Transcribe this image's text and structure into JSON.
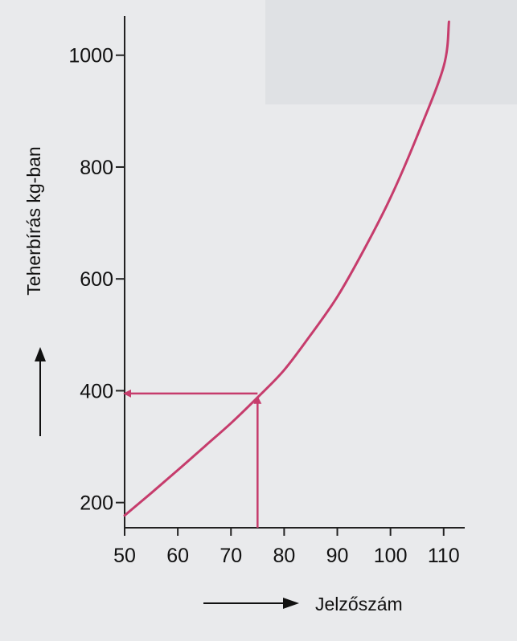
{
  "chart_data": {
    "type": "line",
    "title": "",
    "xlabel": "Jelzőszám",
    "ylabel": "Teherbírás kg-ban",
    "xlim": [
      50,
      112
    ],
    "ylim": [
      155,
      1070
    ],
    "x_ticks": [
      50,
      60,
      70,
      80,
      90,
      100,
      110
    ],
    "y_ticks": [
      200,
      400,
      600,
      800,
      1000
    ],
    "grid": false,
    "legend": "none",
    "series": [
      {
        "x": [
          50,
          55,
          60,
          65,
          70,
          75,
          80,
          85,
          90,
          95,
          100,
          105,
          110,
          111
        ],
        "y": [
          177,
          217,
          258,
          300,
          342,
          388,
          437,
          500,
          568,
          652,
          745,
          855,
          980,
          1060
        ]
      }
    ],
    "annotations": [
      {
        "type": "arrow",
        "from": [
          75,
          155
        ],
        "to": [
          75,
          388
        ],
        "label": ""
      },
      {
        "type": "arrow",
        "from": [
          75,
          395
        ],
        "to": [
          50,
          395
        ],
        "label": ""
      }
    ],
    "colors": {
      "curve": "#c63c6c",
      "axis": "#222222"
    }
  }
}
